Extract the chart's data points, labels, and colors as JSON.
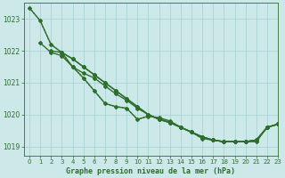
{
  "title": "Graphe pression niveau de la mer (hPa)",
  "bg_color": "#cce8e8",
  "grid_color": "#aad4d4",
  "line_color": "#2d6e2d",
  "xlim": [
    -0.5,
    23
  ],
  "ylim": [
    1018.7,
    1023.5
  ],
  "yticks": [
    1019,
    1020,
    1021,
    1022,
    1023
  ],
  "xticks": [
    0,
    1,
    2,
    3,
    4,
    5,
    6,
    7,
    8,
    9,
    10,
    11,
    12,
    13,
    14,
    15,
    16,
    17,
    18,
    19,
    20,
    21,
    22,
    23
  ],
  "lines": [
    {
      "x": [
        0,
        1,
        2,
        3,
        4,
        5,
        6,
        7,
        8,
        9,
        10,
        11,
        12,
        13,
        14,
        15,
        16,
        17,
        18,
        19,
        20,
        21,
        22,
        23
      ],
      "y": [
        1023.35,
        1022.95,
        1022.2,
        1021.95,
        1021.5,
        1021.15,
        1020.75,
        1020.35,
        1020.25,
        1020.2,
        1019.85,
        1019.95,
        1019.9,
        1019.8,
        1019.6,
        1019.45,
        1019.25,
        1019.2,
        1019.15,
        1019.15,
        1019.15,
        1019.2,
        1019.6,
        1019.7
      ],
      "style": "dotted",
      "marker": false,
      "lw": 1.0
    },
    {
      "x": [
        0,
        1,
        2,
        3,
        4,
        5,
        6,
        7,
        8,
        9,
        10,
        11,
        12,
        13,
        14,
        15,
        16,
        17,
        18,
        19,
        20,
        21,
        22,
        23
      ],
      "y": [
        1023.35,
        1022.95,
        1022.2,
        1021.95,
        1021.5,
        1021.15,
        1020.75,
        1020.35,
        1020.25,
        1020.2,
        1019.85,
        1019.95,
        1019.9,
        1019.8,
        1019.6,
        1019.45,
        1019.25,
        1019.2,
        1019.15,
        1019.15,
        1019.15,
        1019.2,
        1019.6,
        1019.7
      ],
      "style": "solid",
      "marker": true,
      "markersize": 2.0,
      "lw": 1.0
    },
    {
      "x": [
        1,
        2,
        3,
        4,
        5,
        6,
        7,
        8,
        9,
        10,
        11,
        12,
        13,
        14,
        15,
        16,
        17,
        18,
        19,
        20,
        21,
        22,
        23
      ],
      "y": [
        1022.25,
        1021.95,
        1021.85,
        1021.5,
        1021.3,
        1021.15,
        1020.9,
        1020.65,
        1020.45,
        1020.2,
        1020.0,
        1019.85,
        1019.75,
        1019.6,
        1019.45,
        1019.3,
        1019.2,
        1019.15,
        1019.15,
        1019.15,
        1019.15,
        1019.6,
        1019.7
      ],
      "style": "solid",
      "marker": true,
      "markersize": 2.0,
      "lw": 1.0
    },
    {
      "x": [
        2,
        3,
        4,
        5,
        6,
        7,
        8,
        9,
        10,
        11,
        12,
        13,
        14,
        15,
        16,
        17,
        18,
        19,
        20,
        21,
        22,
        23
      ],
      "y": [
        1022.0,
        1021.95,
        1021.75,
        1021.5,
        1021.25,
        1021.0,
        1020.75,
        1020.5,
        1020.25,
        1020.0,
        1019.85,
        1019.75,
        1019.6,
        1019.45,
        1019.3,
        1019.2,
        1019.15,
        1019.15,
        1019.15,
        1019.2,
        1019.6,
        1019.7
      ],
      "style": "solid",
      "marker": true,
      "markersize": 2.0,
      "lw": 1.0
    },
    {
      "x": [
        3,
        4,
        5,
        6,
        7,
        8,
        9,
        10,
        11,
        12,
        13,
        14,
        15,
        16,
        17,
        18,
        19,
        20,
        21,
        22,
        23
      ],
      "y": [
        1021.95,
        1021.75,
        1021.5,
        1021.25,
        1021.0,
        1020.75,
        1020.5,
        1020.25,
        1020.0,
        1019.85,
        1019.75,
        1019.6,
        1019.45,
        1019.3,
        1019.2,
        1019.15,
        1019.15,
        1019.15,
        1019.2,
        1019.6,
        1019.7
      ],
      "style": "solid",
      "marker": true,
      "markersize": 2.0,
      "lw": 1.0
    }
  ]
}
